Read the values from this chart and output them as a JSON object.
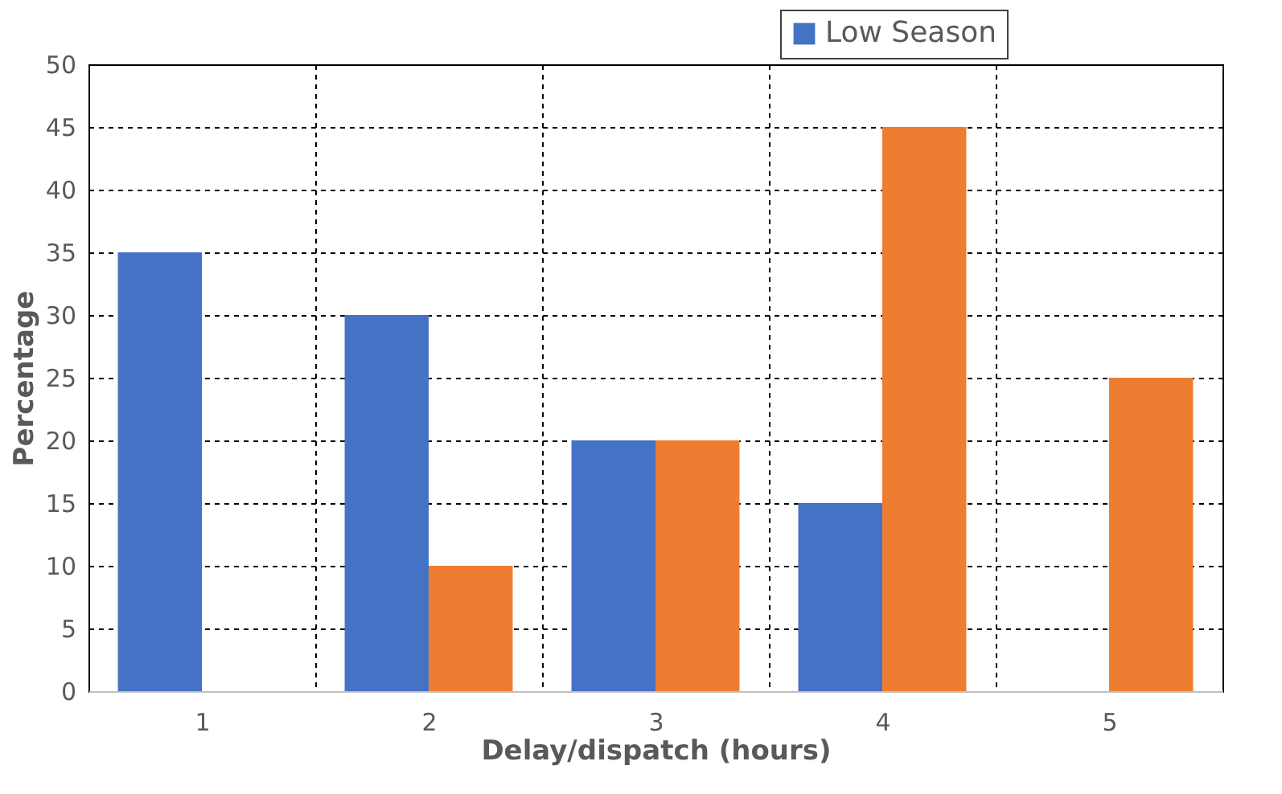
{
  "chart_data": {
    "type": "bar",
    "xlabel": "Delay/dispatch (hours)",
    "ylabel": "Percentage",
    "categories": [
      "1",
      "2",
      "3",
      "4",
      "5"
    ],
    "series": [
      {
        "name": "Low Season",
        "color": "#4472c4",
        "values": [
          35,
          30,
          20,
          15,
          0
        ]
      },
      {
        "color": "#ed7d31",
        "values": [
          0,
          10,
          20,
          45,
          25
        ]
      }
    ],
    "ylim": [
      0,
      50
    ],
    "yticks": [
      0,
      5,
      10,
      15,
      20,
      25,
      30,
      35,
      40,
      45,
      50
    ],
    "grid": true,
    "legend": "top right"
  }
}
